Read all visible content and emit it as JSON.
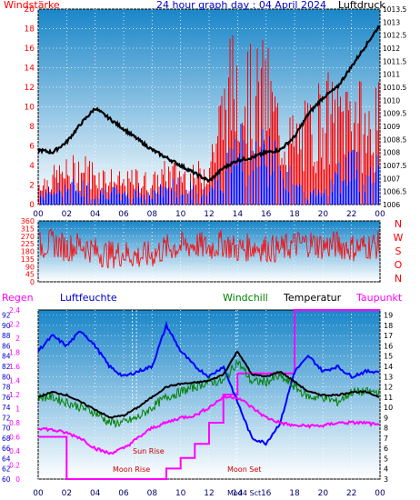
{
  "header": {
    "left_label": "Windstärke",
    "title": "24 hour graph day : 04 April 2024",
    "right_label": "Luftdruck"
  },
  "bottom_header": {
    "regen": "Regen",
    "luftfeuchte": "Luftfeuchte",
    "windchill": "Windchill",
    "temperatur": "Temperatur",
    "taupunkt": "Taupunkt"
  },
  "annotations": {
    "sun_rise": "Sun Rise",
    "moon_rise": "Moon Rise",
    "moon_set": "Moon Set",
    "bottom_center": "Mod4 Sct"
  },
  "colors": {
    "wind": "#ff0000",
    "gust": "#0000ff",
    "pressure": "#000000",
    "direction": "#ff0000",
    "humidity": "#0000ff",
    "windchill": "#008000",
    "temperature": "#000000",
    "dewpoint": "#ff00ff",
    "rain": "#ff00ff",
    "plot_bg_top": "#1a86c8",
    "plot_bg_bottom": "#ffffff"
  },
  "chart_data": [
    {
      "type": "line",
      "panel": "wind_pressure",
      "x_tick_labels": [
        "00",
        "02",
        "04",
        "06",
        "08",
        "10",
        "12",
        "14",
        "16",
        "18",
        "20",
        "22",
        "00"
      ],
      "x": [
        0,
        1,
        2,
        3,
        4,
        5,
        6,
        7,
        8,
        9,
        10,
        11,
        12,
        13,
        14,
        15,
        16,
        17,
        18,
        19,
        20,
        21,
        22,
        23,
        24
      ],
      "ylim_left": [
        0,
        20
      ],
      "ylim_right": [
        1006,
        1013.5
      ],
      "y_left_ticks": [
        0,
        2,
        4,
        6,
        8,
        10,
        12,
        14,
        16,
        18,
        20
      ],
      "y_right_ticks": [
        "1006",
        "1006.5",
        "1007",
        "1007.5",
        "1008",
        "1008.5",
        "1009",
        "1009.5",
        "1010",
        "1010.5",
        "1011",
        "1011.5",
        "1012",
        "1012.5",
        "1013",
        "1013.5"
      ],
      "series": [
        {
          "name": "Windstärke",
          "axis": "left",
          "values": [
            2,
            2.5,
            3,
            3.5,
            3,
            2.5,
            2,
            2.5,
            2,
            3,
            3,
            2.5,
            4,
            9,
            13,
            10,
            11,
            7,
            6,
            7,
            9,
            8,
            10,
            7,
            8
          ]
        },
        {
          "name": "gust",
          "axis": "left",
          "values": [
            1,
            1.5,
            2,
            2,
            1.5,
            1.5,
            1,
            1.5,
            1,
            2,
            2,
            1.5,
            2,
            4,
            6,
            6,
            6,
            5,
            2,
            1,
            2,
            3,
            5,
            3,
            5
          ]
        },
        {
          "name": "Luftdruck",
          "axis": "right",
          "values": [
            1008.1,
            1008,
            1008.4,
            1009.1,
            1009.7,
            1009.3,
            1008.9,
            1008.5,
            1008.1,
            1007.8,
            1007.5,
            1007.2,
            1006.9,
            1007.4,
            1007.7,
            1007.8,
            1008,
            1008.1,
            1008.6,
            1009.5,
            1010.1,
            1010.5,
            1011.3,
            1012.1,
            1012.9
          ]
        }
      ]
    },
    {
      "type": "line",
      "panel": "wind_direction",
      "ylim": [
        0,
        360
      ],
      "y_ticks": [
        0,
        45,
        90,
        135,
        180,
        225,
        270,
        315,
        360
      ],
      "compass_labels": [
        "N",
        "W",
        "S",
        "O",
        "N"
      ],
      "series": [
        {
          "name": "direction",
          "values": [
            210,
            230,
            200,
            220,
            180,
            160,
            170,
            150,
            160,
            200,
            210,
            220,
            200,
            230,
            190,
            210,
            200,
            190,
            220,
            230,
            210,
            220,
            200,
            210,
            220
          ]
        }
      ]
    },
    {
      "type": "line",
      "panel": "temp_humidity",
      "y_left_rain_ticks": [
        "0",
        "0.2",
        "0.4",
        "0.6",
        "0.8",
        "1",
        "1.2",
        "1.4",
        "1.6",
        "1.8",
        "2",
        "2.2",
        "2.4"
      ],
      "y_left_humidity_ticks": [
        "60",
        "62",
        "64",
        "66",
        "68",
        "70",
        "72",
        "74",
        "76",
        "78",
        "80",
        "82",
        "84",
        "86",
        "88",
        "90",
        "92"
      ],
      "y_right_temp_ticks": [
        3,
        4,
        5,
        6,
        7,
        8,
        9,
        10,
        11,
        12,
        13,
        14,
        15,
        16,
        17,
        18,
        19
      ],
      "ylim_temp": [
        3,
        19.5
      ],
      "ylim_humidity": [
        60,
        93
      ],
      "ylim_rain": [
        0,
        2.4
      ],
      "series": [
        {
          "name": "Luftfeuchte",
          "axis": "humidity",
          "values": [
            85,
            88,
            86,
            89,
            86,
            82,
            80,
            81,
            82,
            90,
            85,
            82,
            80,
            82,
            75,
            68,
            67,
            71,
            81,
            84,
            81,
            82,
            80,
            81,
            81
          ]
        },
        {
          "name": "Windchill",
          "axis": "temp",
          "values": [
            11,
            11,
            10.5,
            10,
            9.5,
            8.5,
            8.5,
            9,
            10,
            11,
            11.5,
            12,
            12.5,
            12.5,
            14.5,
            12.5,
            12.5,
            13,
            12,
            11,
            11,
            10.5,
            11.5,
            11.5,
            11.5
          ]
        },
        {
          "name": "Temperatur",
          "axis": "temp",
          "values": [
            11,
            11.5,
            11.2,
            10.5,
            9.8,
            9,
            9.2,
            10,
            11,
            12,
            12.3,
            12.4,
            12.6,
            13.2,
            15.5,
            13.2,
            13,
            13.5,
            12.5,
            11.5,
            11.2,
            11.2,
            11.5,
            11.5,
            11
          ]
        },
        {
          "name": "Taupunkt",
          "axis": "temp",
          "values": [
            8,
            7.8,
            7.5,
            7,
            6,
            5.5,
            6,
            7,
            8,
            8.5,
            9,
            9.2,
            10,
            11,
            11,
            10,
            9,
            8.5,
            8.2,
            8.2,
            8.2,
            8.5,
            8.5,
            8.5,
            8.2
          ]
        },
        {
          "name": "Regen",
          "axis": "rain",
          "values": [
            0.6,
            0.6,
            0,
            0,
            0,
            0,
            0,
            0,
            0,
            0.15,
            0.3,
            0.5,
            0.8,
            1.2,
            1.5,
            1.5,
            1.5,
            1.5,
            2.4,
            2.4,
            2.4,
            2.4,
            2.4,
            2.4,
            2.4
          ]
        }
      ]
    }
  ]
}
